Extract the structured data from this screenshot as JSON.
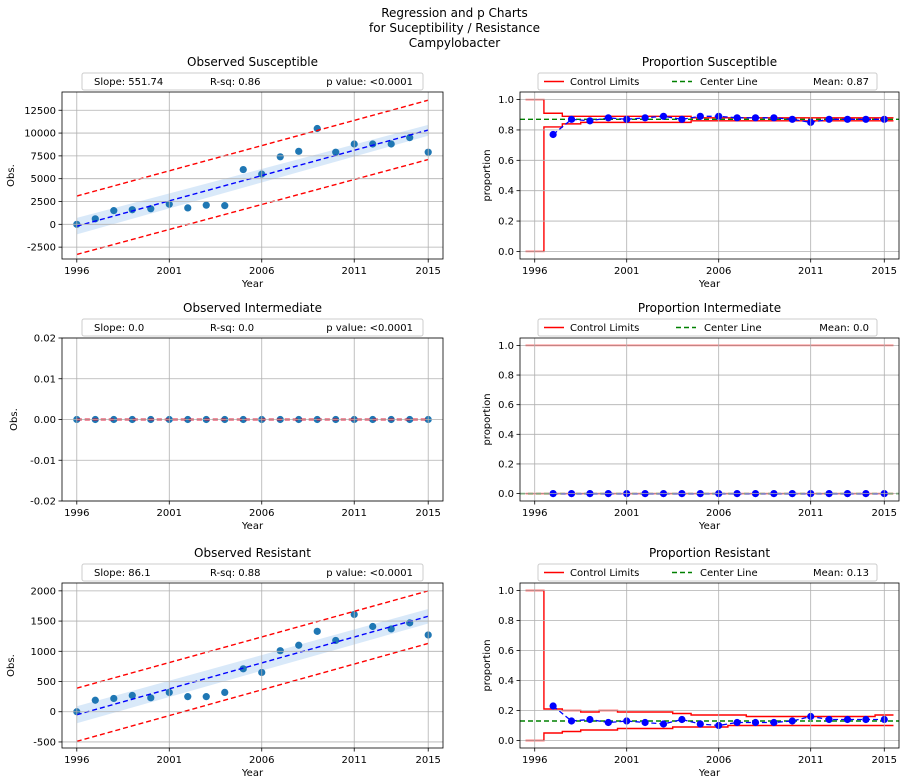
{
  "figure": {
    "title_lines": [
      "Regression and p Charts",
      "for Suceptibility / Resistance",
      "Campylobacter"
    ],
    "colors": {
      "point": "#1f77b4",
      "fit": "#0000ff",
      "pred": "#ff0000",
      "band": "#cfe3f7",
      "limits": "#ff0000",
      "center": "#008000",
      "prop": "#0000ff",
      "grid": "#b0b0b0"
    }
  },
  "legends": {
    "control_limits": "Control Limits",
    "center_line": "Center Line"
  },
  "chart_data": [
    {
      "id": "obs_s",
      "type": "scatter",
      "title": "Observed Susceptible",
      "xlabel": "Year",
      "ylabel": "Obs.",
      "xlim": [
        1995.2,
        2015.8
      ],
      "ylim": [
        -3800,
        14500
      ],
      "xticks": [
        "1996",
        "2001",
        "2006",
        "2011",
        "2015"
      ],
      "yticks": [
        "-2500",
        "0",
        "2500",
        "5000",
        "7500",
        "10000",
        "12500"
      ],
      "legend": {
        "slope": "Slope: 551.74",
        "rsq": "R-sq: 0.86",
        "p": "p value: <0.0001"
      },
      "x": [
        1996,
        1997,
        1998,
        1999,
        2000,
        2001,
        2002,
        2003,
        2004,
        2005,
        2006,
        2007,
        2008,
        2009,
        2010,
        2011,
        2012,
        2013,
        2014,
        2015
      ],
      "y": [
        0,
        600,
        1500,
        1600,
        1700,
        2200,
        1800,
        2100,
        2050,
        6000,
        5500,
        7400,
        8000,
        10500,
        7900,
        8800,
        8800,
        8800,
        9500,
        7900
      ],
      "fit": {
        "x": [
          1996,
          2015
        ],
        "y": [
          -200,
          10330
        ]
      },
      "band_upper": [
        700,
        10900
      ],
      "band_lower": [
        -1100,
        9700
      ],
      "pred_upper": [
        3100,
        13600
      ],
      "pred_lower": [
        -3300,
        7100
      ],
      "grid": true
    },
    {
      "id": "prop_s",
      "type": "line",
      "title": "Proportion Susceptible",
      "xlabel": "Year",
      "ylabel": "proportion",
      "xlim": [
        1995.2,
        2015.8
      ],
      "ylim": [
        -0.05,
        1.05
      ],
      "xticks": [
        "1996",
        "2001",
        "2006",
        "2011",
        "2015"
      ],
      "yticks": [
        "0.0",
        "0.2",
        "0.4",
        "0.6",
        "0.8",
        "1.0"
      ],
      "legend": {
        "mean": "Mean: 0.87"
      },
      "center": 0.87,
      "x": [
        1997,
        1998,
        1999,
        2000,
        2001,
        2002,
        2003,
        2004,
        2005,
        2006,
        2007,
        2008,
        2009,
        2010,
        2011,
        2012,
        2013,
        2014,
        2015
      ],
      "y": [
        0.77,
        0.87,
        0.86,
        0.88,
        0.87,
        0.88,
        0.89,
        0.87,
        0.89,
        0.89,
        0.88,
        0.88,
        0.88,
        0.87,
        0.85,
        0.87,
        0.87,
        0.87,
        0.87
      ],
      "ucl": [
        1.0,
        0.91,
        0.89,
        0.89,
        0.89,
        0.89,
        0.89,
        0.89,
        0.89,
        0.88,
        0.88,
        0.88,
        0.88,
        0.88,
        0.88,
        0.88,
        0.88,
        0.88,
        0.88,
        0.88
      ],
      "lcl": [
        0.0,
        0.82,
        0.84,
        0.85,
        0.85,
        0.85,
        0.85,
        0.85,
        0.85,
        0.86,
        0.86,
        0.86,
        0.86,
        0.86,
        0.86,
        0.86,
        0.86,
        0.86,
        0.86,
        0.86
      ],
      "grid": true
    },
    {
      "id": "obs_i",
      "type": "scatter",
      "title": "Observed Intermediate",
      "xlabel": "Year",
      "ylabel": "Obs.",
      "xlim": [
        1995.2,
        2015.8
      ],
      "ylim": [
        -0.02,
        0.02
      ],
      "xticks": [
        "1996",
        "2001",
        "2006",
        "2011",
        "2015"
      ],
      "yticks": [
        "-0.02",
        "-0.01",
        "0.00",
        "0.01",
        "0.02"
      ],
      "legend": {
        "slope": "Slope: 0.0",
        "rsq": "R-sq: 0.0",
        "p": "p value: <0.0001"
      },
      "x": [
        1996,
        1997,
        1998,
        1999,
        2000,
        2001,
        2002,
        2003,
        2004,
        2005,
        2006,
        2007,
        2008,
        2009,
        2010,
        2011,
        2012,
        2013,
        2014,
        2015
      ],
      "y": [
        0,
        0,
        0,
        0,
        0,
        0,
        0,
        0,
        0,
        0,
        0,
        0,
        0,
        0,
        0,
        0,
        0,
        0,
        0,
        0
      ],
      "fit": {
        "x": [
          1996,
          2015
        ],
        "y": [
          0,
          0
        ]
      },
      "band_upper": [
        0,
        0
      ],
      "band_lower": [
        0,
        0
      ],
      "pred_upper": [
        0,
        0
      ],
      "pred_lower": [
        0,
        0
      ],
      "grid": true
    },
    {
      "id": "prop_i",
      "type": "line",
      "title": "Proportion Intermediate",
      "xlabel": "Year",
      "ylabel": "proportion",
      "xlim": [
        1995.2,
        2015.8
      ],
      "ylim": [
        -0.05,
        1.05
      ],
      "xticks": [
        "1996",
        "2001",
        "2006",
        "2011",
        "2015"
      ],
      "yticks": [
        "0.0",
        "0.2",
        "0.4",
        "0.6",
        "0.8",
        "1.0"
      ],
      "legend": {
        "mean": "Mean: 0.0"
      },
      "center": 0.0,
      "x": [
        1997,
        1998,
        1999,
        2000,
        2001,
        2002,
        2003,
        2004,
        2005,
        2006,
        2007,
        2008,
        2009,
        2010,
        2011,
        2012,
        2013,
        2014,
        2015
      ],
      "y": [
        0,
        0,
        0,
        0,
        0,
        0,
        0,
        0,
        0,
        0,
        0,
        0,
        0,
        0,
        0,
        0,
        0,
        0,
        0
      ],
      "ucl": [
        1,
        1,
        1,
        1,
        1,
        1,
        1,
        1,
        1,
        1,
        1,
        1,
        1,
        1,
        1,
        1,
        1,
        1,
        1,
        1
      ],
      "lcl": [
        0,
        0,
        0,
        0,
        0,
        0,
        0,
        0,
        0,
        0,
        0,
        0,
        0,
        0,
        0,
        0,
        0,
        0,
        0,
        0
      ],
      "grid": true
    },
    {
      "id": "obs_r",
      "type": "scatter",
      "title": "Observed Resistant",
      "xlabel": "Year",
      "ylabel": "Obs.",
      "xlim": [
        1995.2,
        2015.8
      ],
      "ylim": [
        -600,
        2130
      ],
      "xticks": [
        "1996",
        "2001",
        "2006",
        "2011",
        "2015"
      ],
      "yticks": [
        "-500",
        "0",
        "500",
        "1000",
        "1500",
        "2000"
      ],
      "legend": {
        "slope": "Slope: 86.1",
        "rsq": "R-sq: 0.88",
        "p": "p value: <0.0001"
      },
      "x": [
        1996,
        1997,
        1998,
        1999,
        2000,
        2001,
        2002,
        2003,
        2004,
        2005,
        2006,
        2007,
        2008,
        2009,
        2010,
        2011,
        2012,
        2013,
        2014,
        2015
      ],
      "y": [
        0,
        190,
        220,
        270,
        230,
        320,
        250,
        250,
        320,
        710,
        650,
        1010,
        1100,
        1330,
        1180,
        1610,
        1410,
        1370,
        1470,
        1270
      ],
      "fit": {
        "x": [
          1996,
          2015
        ],
        "y": [
          -50,
          1580
        ]
      },
      "band_upper": [
        90,
        1700
      ],
      "band_lower": [
        -190,
        1460
      ],
      "pred_upper": [
        390,
        2000
      ],
      "pred_lower": [
        -490,
        1130
      ],
      "grid": true
    },
    {
      "id": "prop_r",
      "type": "line",
      "title": "Proportion Resistant",
      "xlabel": "Year",
      "ylabel": "proportion",
      "xlim": [
        1995.2,
        2015.8
      ],
      "ylim": [
        -0.05,
        1.05
      ],
      "xticks": [
        "1996",
        "2001",
        "2006",
        "2011",
        "2015"
      ],
      "yticks": [
        "0.0",
        "0.2",
        "0.4",
        "0.6",
        "0.8",
        "1.0"
      ],
      "legend": {
        "mean": "Mean: 0.13"
      },
      "center": 0.13,
      "x": [
        1997,
        1998,
        1999,
        2000,
        2001,
        2002,
        2003,
        2004,
        2005,
        2006,
        2007,
        2008,
        2009,
        2010,
        2011,
        2012,
        2013,
        2014,
        2015
      ],
      "y": [
        0.23,
        0.13,
        0.14,
        0.12,
        0.13,
        0.12,
        0.11,
        0.14,
        0.11,
        0.1,
        0.12,
        0.12,
        0.12,
        0.13,
        0.16,
        0.14,
        0.14,
        0.14,
        0.14
      ],
      "ucl": [
        1.0,
        0.21,
        0.2,
        0.19,
        0.2,
        0.19,
        0.19,
        0.19,
        0.18,
        0.17,
        0.17,
        0.17,
        0.16,
        0.16,
        0.16,
        0.16,
        0.16,
        0.16,
        0.16,
        0.17
      ],
      "lcl": [
        0.0,
        0.05,
        0.06,
        0.07,
        0.07,
        0.08,
        0.08,
        0.08,
        0.09,
        0.09,
        0.09,
        0.1,
        0.1,
        0.1,
        0.1,
        0.1,
        0.1,
        0.1,
        0.1,
        0.1
      ],
      "grid": true
    }
  ]
}
